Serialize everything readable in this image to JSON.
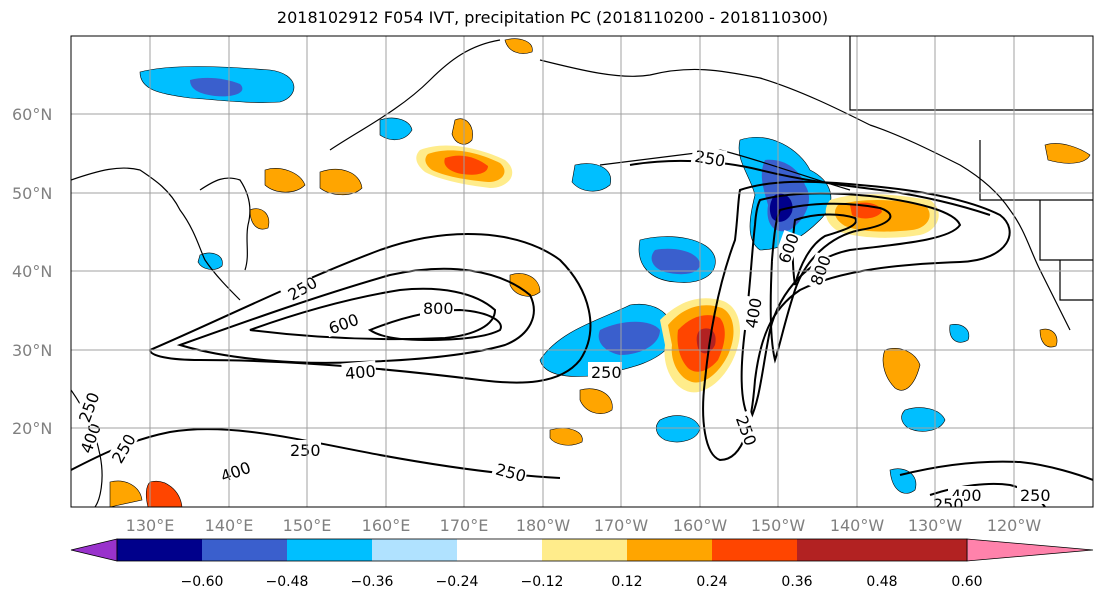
{
  "title": "2018102912 F054 IVT, precipitation PC (2018110200 - 2018110300)",
  "lat_ticks": [
    "20°N",
    "30°N",
    "40°N",
    "50°N",
    "60°N"
  ],
  "lon_ticks": [
    "130°E",
    "140°E",
    "150°E",
    "160°E",
    "170°E",
    "180°W",
    "170°W",
    "160°W",
    "150°W",
    "140°W",
    "130°W",
    "120°W"
  ],
  "colorbar": {
    "colors": [
      "#9932cc",
      "#00008b",
      "#3a5fcd",
      "#00bfff",
      "#b0e2ff",
      "#ffffff",
      "#ffec8b",
      "#ffa500",
      "#ff4500",
      "#b22222",
      "#ff82ab"
    ],
    "labels": [
      "−0.60",
      "−0.48",
      "−0.36",
      "−0.24",
      "−0.12",
      "0.12",
      "0.24",
      "0.36",
      "0.48",
      "0.60"
    ]
  },
  "ivt_contour_labels": [
    "250",
    "600",
    "800",
    "400",
    "250",
    "250",
    "600",
    "800",
    "400",
    "250",
    "250",
    "400",
    "250",
    "250",
    "400",
    "250",
    "400",
    "250",
    "250"
  ]
}
